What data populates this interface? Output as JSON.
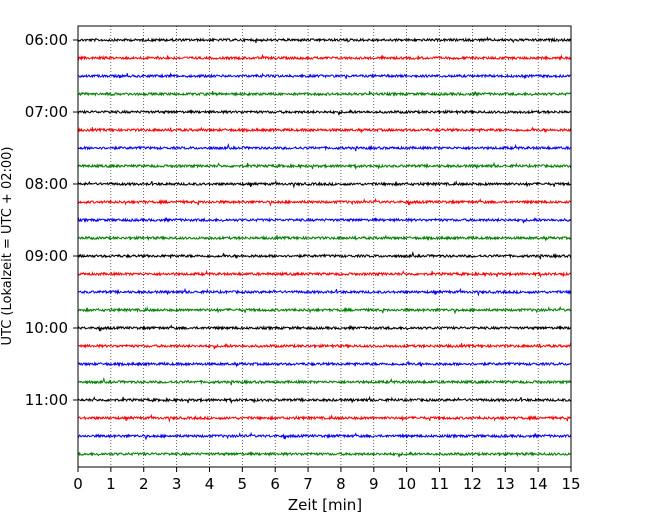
{
  "chart_data": {
    "type": "line",
    "title": "",
    "xlabel": "Zeit  [min]",
    "ylabel": "UTC (Lokalzeit = UTC + 02:00)",
    "xlim": [
      0,
      15
    ],
    "x_ticks": [
      "0",
      "1",
      "2",
      "3",
      "4",
      "5",
      "6",
      "7",
      "8",
      "9",
      "10",
      "11",
      "12",
      "13",
      "14",
      "15"
    ],
    "y_ticks": [
      "06:00",
      "07:00",
      "08:00",
      "09:00",
      "10:00",
      "11:00"
    ],
    "y_tick_trace_index": [
      0,
      4,
      8,
      12,
      16,
      20
    ],
    "grid": "vertical dotted at each minute",
    "trace_interval_min": 15,
    "trace_count": 24,
    "trace_start": "06:00",
    "trace_colors": [
      "#000000",
      "#ff0000",
      "#0000ff",
      "#008000"
    ],
    "legend": "none"
  }
}
